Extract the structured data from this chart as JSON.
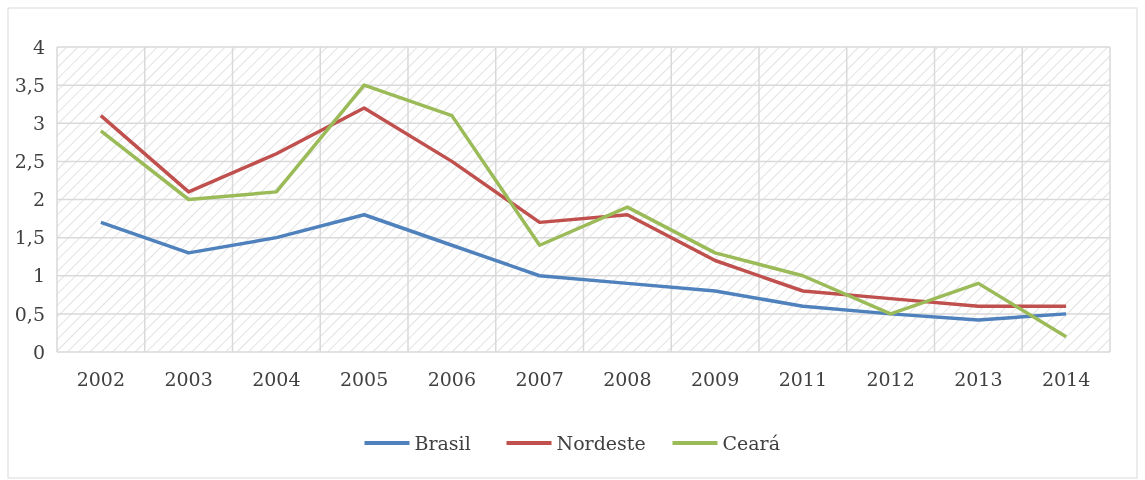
{
  "chart_data": {
    "type": "line",
    "categories": [
      "2002",
      "2003",
      "2004",
      "2005",
      "2006",
      "2007",
      "2008",
      "2009",
      "2011",
      "2012",
      "2013",
      "2014"
    ],
    "series": [
      {
        "name": "Brasil",
        "color": "#4f81bd",
        "values": [
          1.7,
          1.3,
          1.5,
          1.8,
          1.4,
          1.0,
          0.9,
          0.8,
          0.6,
          0.5,
          0.42,
          0.5
        ]
      },
      {
        "name": "Nordeste",
        "color": "#c0504d",
        "values": [
          3.1,
          2.1,
          2.6,
          3.2,
          2.5,
          1.7,
          1.8,
          1.2,
          0.8,
          0.7,
          0.6,
          0.6
        ]
      },
      {
        "name": "Ceará",
        "color": "#9bbb59",
        "values": [
          2.9,
          2.0,
          2.1,
          3.5,
          3.1,
          1.4,
          1.9,
          1.3,
          1.0,
          0.5,
          0.9,
          0.2
        ]
      }
    ],
    "ylim": [
      0,
      4
    ],
    "yticks": [
      0,
      {
        "value": 0.5,
        "label": "0,5"
      },
      1,
      {
        "value": 1.5,
        "label": "1,5"
      },
      2,
      {
        "value": 2.5,
        "label": "2,5"
      },
      3,
      {
        "value": 3.5,
        "label": "3,5"
      },
      4
    ],
    "grid": true,
    "legend": "bottom",
    "marker": "none",
    "line_style": "solid"
  }
}
